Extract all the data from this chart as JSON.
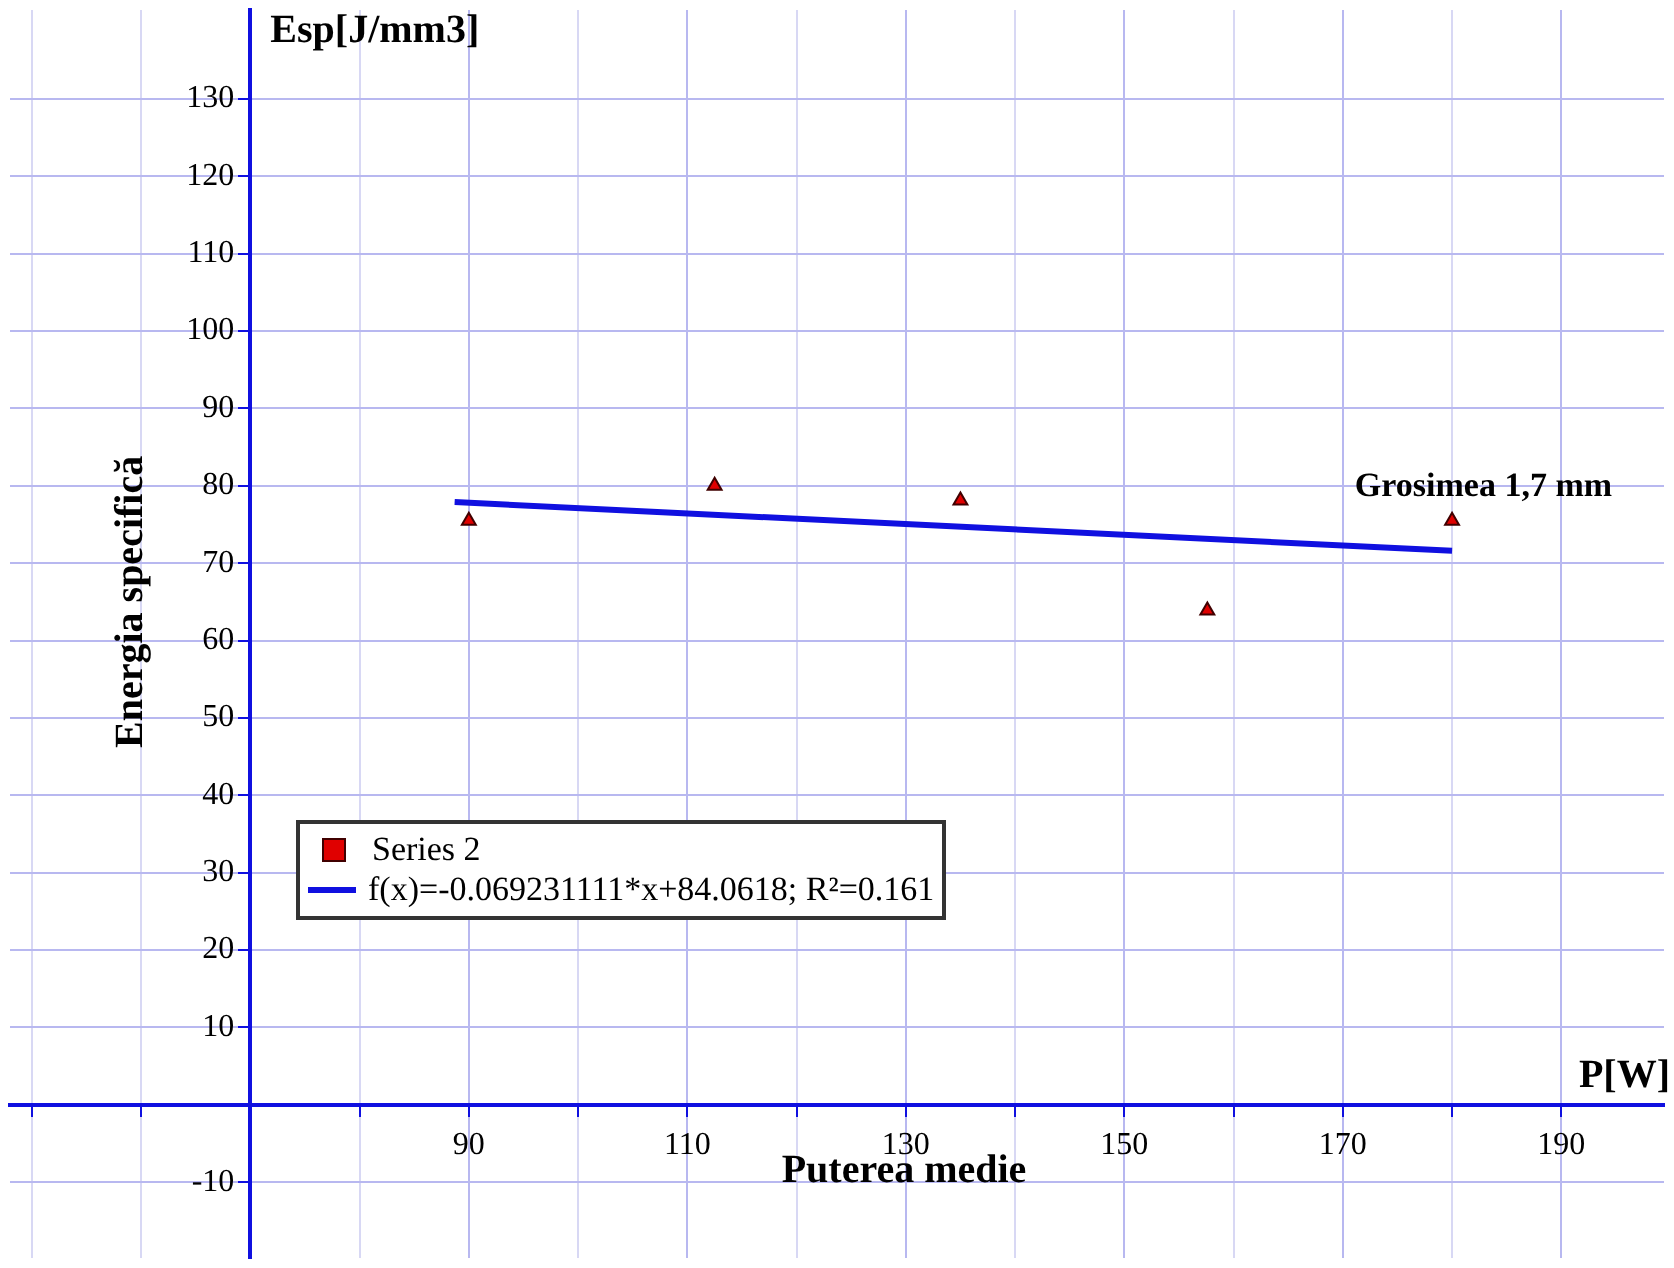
{
  "chart_data": {
    "type": "scatter",
    "xlabel": "Puterea medie",
    "ylabel": "Energia specifică",
    "annotations": [
      "Esp[J/mm3]",
      "P[W]",
      {
        "text": "Grosimea 1,7 mm",
        "x": 180,
        "y": 75.5
      }
    ],
    "x": [
      90,
      112.5,
      135,
      157.6,
      180
    ],
    "series": [
      {
        "name": "Series 2",
        "color": "#e00000",
        "values": [
          75.5,
          80,
          78.1,
          63.9,
          75.5
        ],
        "marker": "triangle"
      },
      {
        "name": "f(x)=-0.069231111*x+84.0618; R²=0.161",
        "type": "line",
        "color": "#1010e0",
        "x": [
          88.7,
          180
        ],
        "values": [
          77.9,
          71.6
        ],
        "marker": "none"
      }
    ],
    "xlim": [
      48,
      199.4
    ],
    "ylim": [
      -19.8,
      141.5
    ],
    "xticks": [
      {
        "value": 50,
        "label": null
      },
      {
        "value": 60,
        "label": null
      },
      {
        "value": 70,
        "label": null
      },
      {
        "value": 80,
        "label": null
      },
      90,
      {
        "value": 100,
        "label": null
      },
      110,
      {
        "value": 120,
        "label": null
      },
      130,
      {
        "value": 140,
        "label": null
      },
      150,
      {
        "value": 160,
        "label": null
      },
      170,
      {
        "value": 180,
        "label": null
      },
      190
    ],
    "yticks": [
      -10,
      {
        "value": 0,
        "label": null
      },
      10,
      20,
      30,
      40,
      50,
      60,
      70,
      80,
      90,
      100,
      110,
      120,
      130
    ],
    "grid": true,
    "legend": "bottom left"
  }
}
